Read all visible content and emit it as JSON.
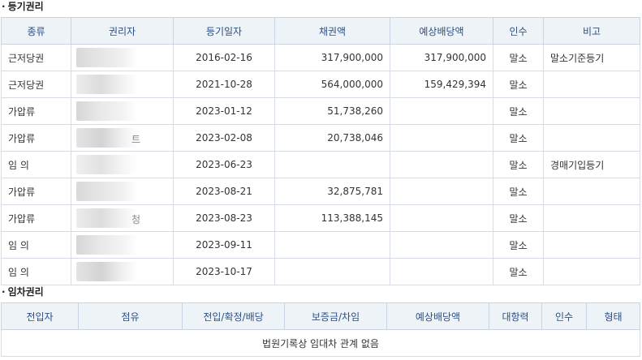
{
  "registered_rights": {
    "title": "등기권리",
    "headers": [
      "종류",
      "권리자",
      "등기일자",
      "채권액",
      "예상배당액",
      "인수",
      "비고"
    ],
    "rows": [
      {
        "type": "근저당권",
        "date": "2016-02-16",
        "claim": "317,900,000",
        "dividend": "317,900,000",
        "assume": "말소",
        "note": "말소기준등기",
        "holder_tail": ""
      },
      {
        "type": "근저당권",
        "date": "2021-10-28",
        "claim": "564,000,000",
        "dividend": "159,429,394",
        "assume": "말소",
        "note": "",
        "holder_tail": ""
      },
      {
        "type": "가압류",
        "date": "2023-01-12",
        "claim": "51,738,260",
        "dividend": "",
        "assume": "말소",
        "note": "",
        "holder_tail": ""
      },
      {
        "type": "가압류",
        "date": "2023-02-08",
        "claim": "20,738,046",
        "dividend": "",
        "assume": "말소",
        "note": "",
        "holder_tail": "트"
      },
      {
        "type": "임 의",
        "date": "2023-06-23",
        "claim": "",
        "dividend": "",
        "assume": "말소",
        "note": "경매기입등기",
        "holder_tail": ""
      },
      {
        "type": "가압류",
        "date": "2023-08-21",
        "claim": "32,875,781",
        "dividend": "",
        "assume": "말소",
        "note": "",
        "holder_tail": ""
      },
      {
        "type": "가압류",
        "date": "2023-08-23",
        "claim": "113,388,145",
        "dividend": "",
        "assume": "말소",
        "note": "",
        "holder_tail": "청"
      },
      {
        "type": "임 의",
        "date": "2023-09-11",
        "claim": "",
        "dividend": "",
        "assume": "말소",
        "note": "",
        "holder_tail": ""
      },
      {
        "type": "임 의",
        "date": "2023-10-17",
        "claim": "",
        "dividend": "",
        "assume": "말소",
        "note": "",
        "holder_tail": ""
      }
    ]
  },
  "lease_rights": {
    "title": "임차권리",
    "headers": [
      "전입자",
      "점유",
      "전입/확정/배당",
      "보증금/차임",
      "예상배당액",
      "대항력",
      "인수",
      "형태"
    ],
    "empty_message": "법원기록상 임대차 관계 없음"
  },
  "bullet": "·",
  "colors": {
    "header_bg": "#eef3f8",
    "header_text": "#2d4f86",
    "border": "#d5dce6"
  }
}
